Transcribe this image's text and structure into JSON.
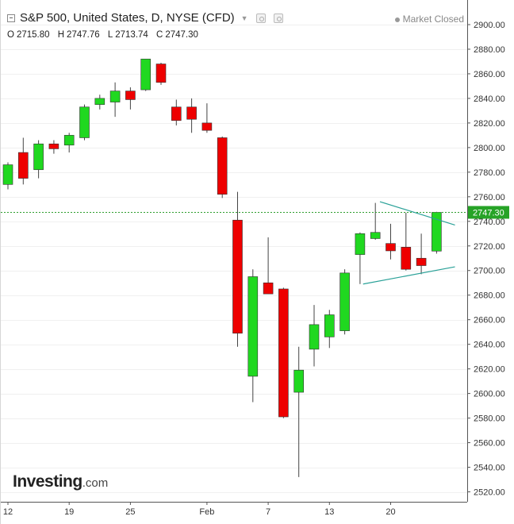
{
  "header": {
    "title": "S&P 500, United States, D, NYSE (CFD)",
    "status": "Market Closed",
    "ohlc": [
      {
        "key": "O",
        "value": "2715.80"
      },
      {
        "key": "H",
        "value": "2747.76"
      },
      {
        "key": "L",
        "value": "2713.74"
      },
      {
        "key": "C",
        "value": "2747.30"
      }
    ]
  },
  "brand": {
    "name": "Investing",
    "suffix": ".com"
  },
  "colors": {
    "up": "#20d820",
    "down": "#ee0000",
    "wick": "#444444",
    "current_line": "#2e9e2e",
    "trendline": "#2aa198"
  },
  "chart_data": {
    "type": "candlestick",
    "ylim": [
      2510,
      2910
    ],
    "y_ticks": [
      "2520.00",
      "2540.00",
      "2560.00",
      "2580.00",
      "2600.00",
      "2620.00",
      "2640.00",
      "2660.00",
      "2680.00",
      "2700.00",
      "2720.00",
      "2740.00",
      "2760.00",
      "2780.00",
      "2800.00",
      "2820.00",
      "2840.00",
      "2860.00",
      "2880.00",
      "2900.00"
    ],
    "x_ticks": [
      {
        "label": "12",
        "index": 0
      },
      {
        "label": "19",
        "index": 4
      },
      {
        "label": "25",
        "index": 8
      },
      {
        "label": "Feb",
        "index": 13
      },
      {
        "label": "7",
        "index": 17
      },
      {
        "label": "13",
        "index": 21
      },
      {
        "label": "20",
        "index": 25
      }
    ],
    "last_price": "2747.30",
    "candles": [
      {
        "o": 2770,
        "h": 2788,
        "l": 2766,
        "c": 2786
      },
      {
        "o": 2796,
        "h": 2808,
        "l": 2770,
        "c": 2775
      },
      {
        "o": 2782,
        "h": 2806,
        "l": 2775,
        "c": 2803
      },
      {
        "o": 2803,
        "h": 2806,
        "l": 2795,
        "c": 2799
      },
      {
        "o": 2802,
        "h": 2812,
        "l": 2796,
        "c": 2810
      },
      {
        "o": 2808,
        "h": 2835,
        "l": 2806,
        "c": 2833
      },
      {
        "o": 2835,
        "h": 2843,
        "l": 2831,
        "c": 2840
      },
      {
        "o": 2837,
        "h": 2853,
        "l": 2825,
        "c": 2846
      },
      {
        "o": 2846,
        "h": 2849,
        "l": 2831,
        "c": 2839
      },
      {
        "o": 2847,
        "h": 2872,
        "l": 2846,
        "c": 2872
      },
      {
        "o": 2868,
        "h": 2869,
        "l": 2851,
        "c": 2853
      },
      {
        "o": 2833,
        "h": 2839,
        "l": 2818,
        "c": 2822
      },
      {
        "o": 2833,
        "h": 2840,
        "l": 2812,
        "c": 2823
      },
      {
        "o": 2820,
        "h": 2836,
        "l": 2812,
        "c": 2814
      },
      {
        "o": 2808,
        "h": 2809,
        "l": 2759,
        "c": 2762
      },
      {
        "o": 2741,
        "h": 2764,
        "l": 2638,
        "c": 2649
      },
      {
        "o": 2614,
        "h": 2701,
        "l": 2593,
        "c": 2695
      },
      {
        "o": 2690,
        "h": 2727,
        "l": 2681,
        "c": 2681
      },
      {
        "o": 2685,
        "h": 2686,
        "l": 2580,
        "c": 2581
      },
      {
        "o": 2601,
        "h": 2638,
        "l": 2532,
        "c": 2619
      },
      {
        "o": 2636,
        "h": 2672,
        "l": 2622,
        "c": 2656
      },
      {
        "o": 2646,
        "h": 2668,
        "l": 2637,
        "c": 2664
      },
      {
        "o": 2651,
        "h": 2701,
        "l": 2648,
        "c": 2698
      },
      {
        "o": 2713,
        "h": 2731,
        "l": 2689,
        "c": 2730
      },
      {
        "o": 2726,
        "h": 2755,
        "l": 2725,
        "c": 2731
      },
      {
        "o": 2722,
        "h": 2738,
        "l": 2709,
        "c": 2716
      },
      {
        "o": 2719,
        "h": 2747,
        "l": 2700,
        "c": 2701
      },
      {
        "o": 2710,
        "h": 2730,
        "l": 2697,
        "c": 2704
      },
      {
        "o": 2715.8,
        "h": 2747.76,
        "l": 2713.74,
        "c": 2747.3
      }
    ],
    "trendlines": [
      {
        "from": {
          "index": 23.2,
          "value": 2689
        },
        "to": {
          "index": 29.2,
          "value": 2703
        }
      },
      {
        "from": {
          "index": 24.3,
          "value": 2756
        },
        "to": {
          "index": 29.2,
          "value": 2737
        }
      }
    ]
  }
}
